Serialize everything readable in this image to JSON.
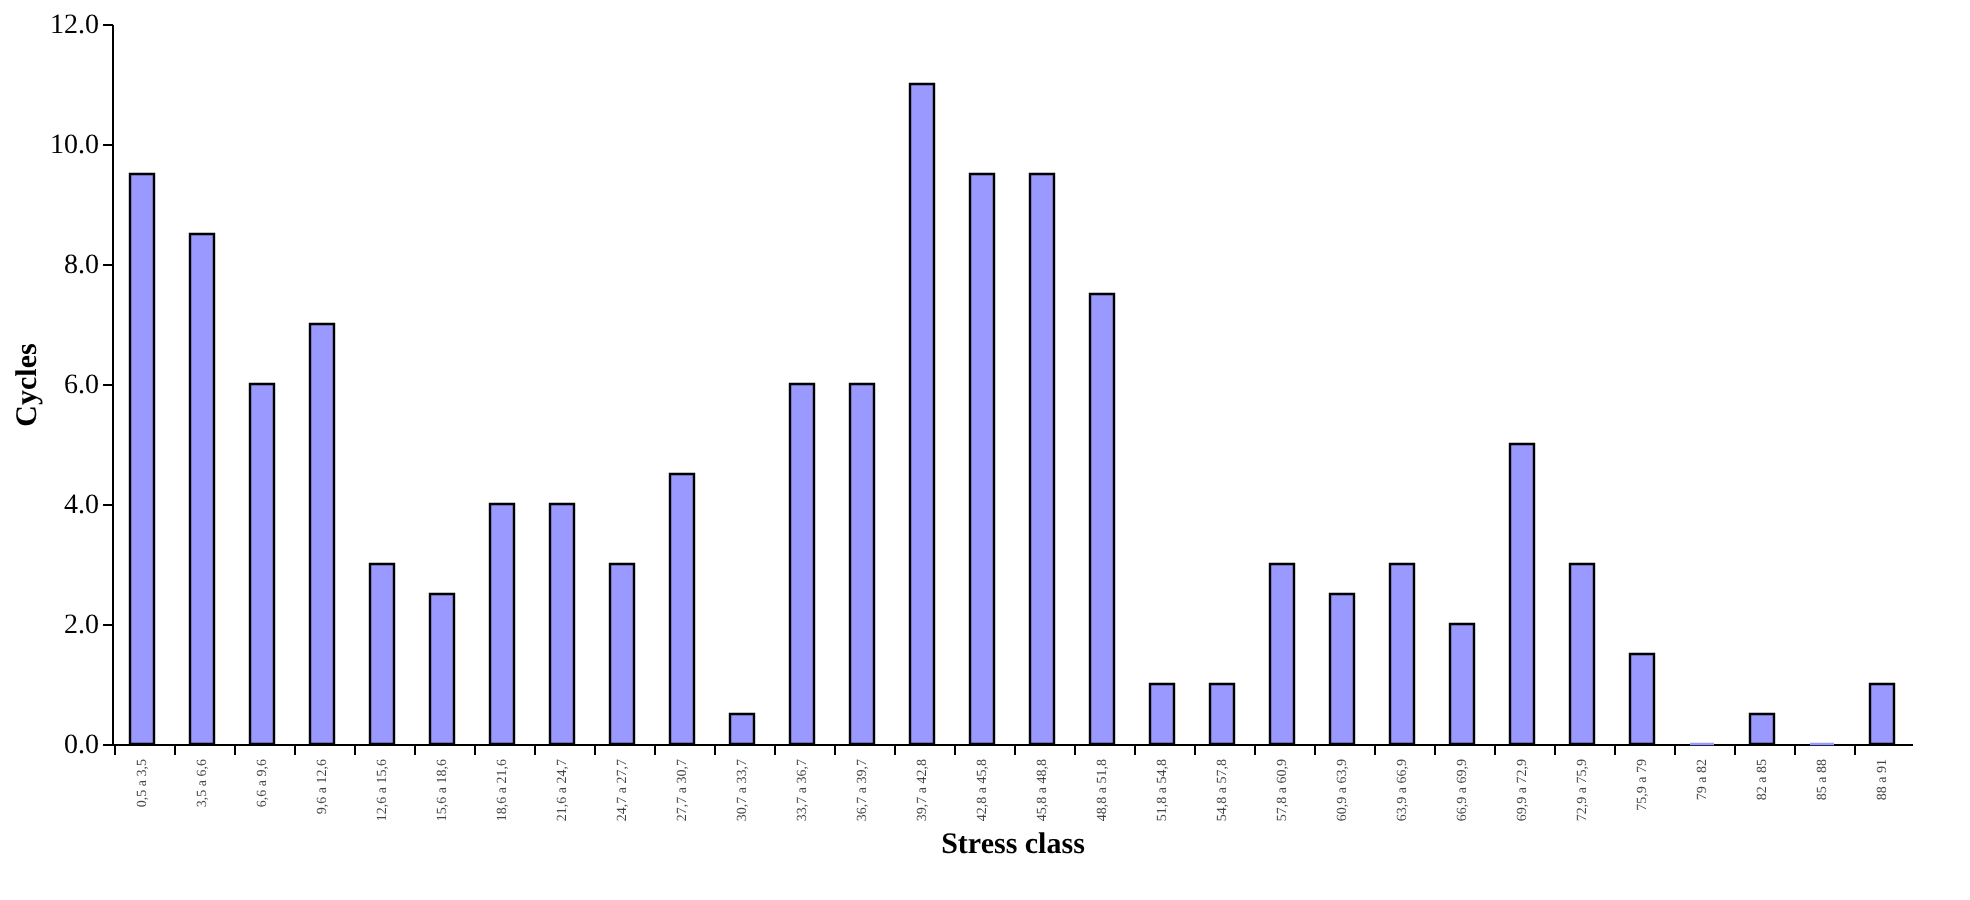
{
  "chart_data": {
    "type": "bar",
    "xlabel": "Stress class",
    "ylabel": "Cycles",
    "categories": [
      "0,5 a 3,5",
      "3,5 a 6,6",
      "6,6 a 9,6",
      "9,6 a 12,6",
      "12,6 a 15,6",
      "15,6 a 18,6",
      "18,6 a 21,6",
      "21,6 a 24,7",
      "24,7 a 27,7",
      "27,7 a 30,7",
      "30,7 a 33,7",
      "33,7 a 36,7",
      "36,7 a 39,7",
      "39,7 a 42,8",
      "42,8 a 45,8",
      "45,8 a 48,8",
      "48,8 a 51,8",
      "51,8 a 54,8",
      "54,8 a 57,8",
      "57,8 a 60,9",
      "60,9 a 63,9",
      "63,9 a 66,9",
      "66,9 a 69,9",
      "69,9 a 72,9",
      "72,9 a 75,9",
      "75,9 a 79",
      "79 a 82",
      "82 a 85",
      "85 a 88",
      "88 a 91"
    ],
    "values": [
      9.5,
      8.5,
      6,
      7,
      3,
      2.5,
      4,
      4,
      3,
      4.5,
      0.5,
      6,
      6,
      11,
      9.5,
      9.5,
      7.5,
      1,
      1,
      3,
      2.5,
      3,
      2,
      5,
      3,
      1.5,
      0,
      0.5,
      0,
      1
    ],
    "color": "#9999ff",
    "ylim": [
      0,
      12
    ],
    "yticks": [
      {
        "value": 0,
        "label": "0.0"
      },
      {
        "value": 2,
        "label": "2.0"
      },
      {
        "value": 4,
        "label": "4.0"
      },
      {
        "value": 6,
        "label": "6.0"
      },
      {
        "value": 8,
        "label": "8.0"
      },
      {
        "value": 10,
        "label": "10.0"
      },
      {
        "value": 12,
        "label": "12.0"
      }
    ],
    "grid": false
  }
}
